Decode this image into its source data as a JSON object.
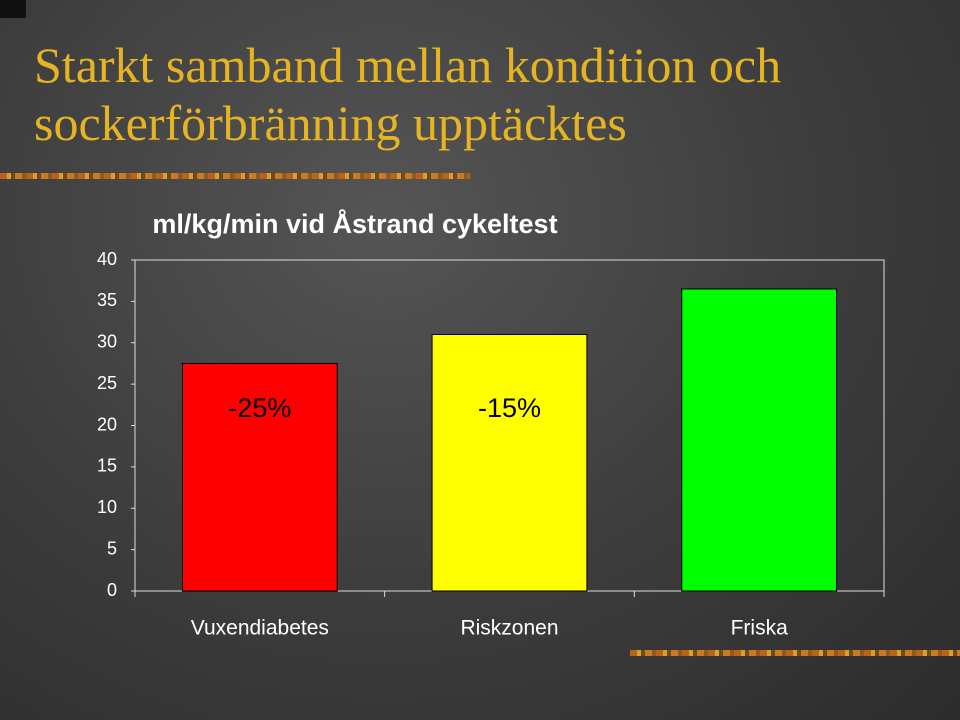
{
  "slide": {
    "title": "Starkt samband mellan kondition och sockerförbränning upptäcktes"
  },
  "chart_data": {
    "type": "bar",
    "title": "ml/kg/min vid Åstrand cykeltest",
    "categories": [
      "Vuxendiabetes",
      "Riskzonen",
      "Friska"
    ],
    "values": [
      27.5,
      31,
      36.5
    ],
    "colors": [
      "#ff0000",
      "#ffff00",
      "#00ff00"
    ],
    "annotations": [
      "-25%",
      "-15%",
      null
    ],
    "ylim": [
      0,
      40
    ],
    "yticks": [
      0,
      5,
      10,
      15,
      20,
      25,
      30,
      35,
      40
    ],
    "grid": false
  }
}
